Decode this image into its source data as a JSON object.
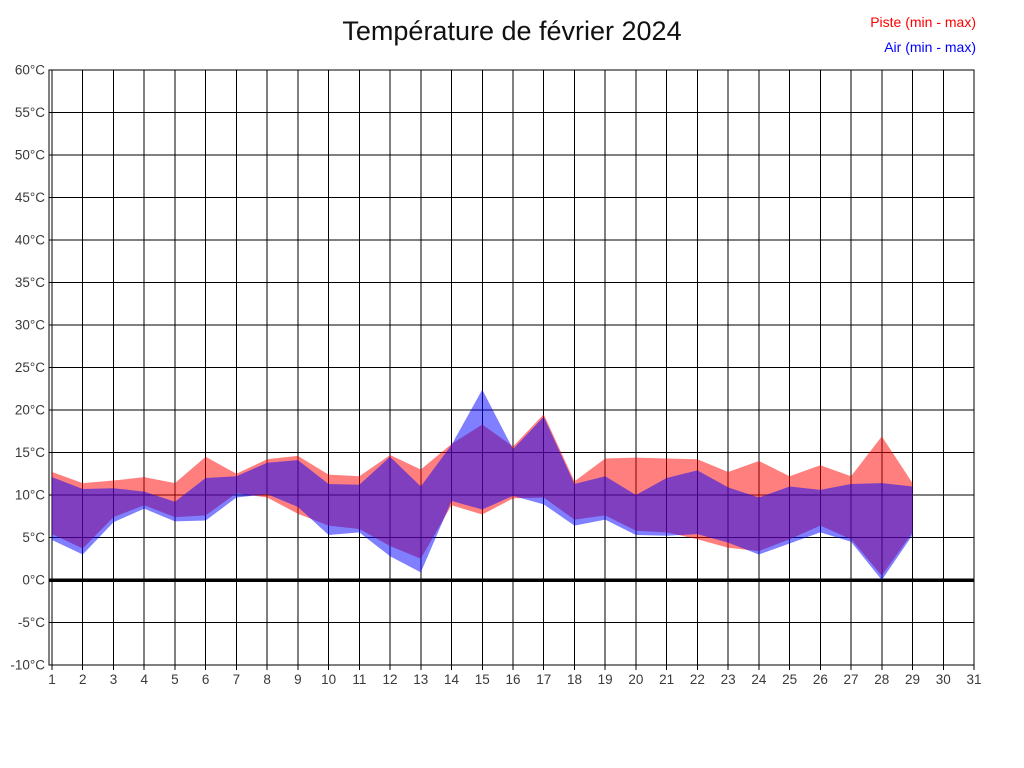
{
  "title": "Température de février 2024",
  "legend": {
    "piste": "Piste (min - max)",
    "air": "Air (min - max)"
  },
  "colors": {
    "piste_text": "#ff0000",
    "air_text": "#0000ff",
    "piste_fill": "rgba(255,0,0,0.5)",
    "air_fill": "rgba(0,0,255,0.5)",
    "grid": "#000000",
    "axis_border": "#000000",
    "zero_line": "#000000",
    "tick_text": "#3a3a3a",
    "background": "#ffffff"
  },
  "chart_data": {
    "type": "area",
    "title": "Température de février 2024",
    "x": [
      1,
      2,
      3,
      4,
      5,
      6,
      7,
      8,
      9,
      10,
      11,
      12,
      13,
      14,
      15,
      16,
      17,
      18,
      19,
      20,
      21,
      22,
      23,
      24,
      25,
      26,
      27,
      28,
      29
    ],
    "series": [
      {
        "name": "Piste (min - max)",
        "color": "#ff0000",
        "min": [
          5.4,
          3.7,
          7.4,
          8.8,
          7.4,
          7.6,
          10.2,
          9.7,
          7.8,
          6.4,
          6.0,
          4.0,
          2.5,
          8.8,
          7.7,
          9.6,
          9.7,
          7.1,
          7.6,
          5.8,
          5.6,
          4.8,
          3.8,
          3.4,
          4.8,
          6.4,
          4.8,
          0.5,
          5.6
        ],
        "max": [
          12.7,
          11.4,
          11.7,
          12.1,
          11.4,
          14.5,
          12.5,
          14.2,
          14.6,
          12.4,
          12.2,
          14.7,
          13.0,
          16.0,
          18.3,
          15.7,
          19.5,
          11.6,
          14.3,
          14.4,
          14.3,
          14.2,
          12.7,
          14.0,
          12.2,
          13.5,
          12.2,
          16.9,
          11.4
        ]
      },
      {
        "name": "Air (min - max)",
        "color": "#0000ff",
        "min": [
          4.7,
          3.0,
          6.8,
          8.4,
          6.9,
          7.0,
          9.7,
          10.1,
          8.6,
          5.3,
          5.6,
          2.8,
          0.9,
          9.3,
          8.3,
          9.9,
          8.9,
          6.4,
          7.1,
          5.3,
          5.2,
          5.4,
          4.4,
          3.0,
          4.3,
          5.6,
          4.5,
          0.0,
          5.3
        ],
        "max": [
          12.1,
          10.7,
          10.8,
          10.4,
          9.2,
          12.0,
          12.2,
          13.8,
          14.1,
          11.3,
          11.2,
          14.5,
          11.0,
          15.9,
          22.4,
          15.4,
          19.2,
          11.3,
          12.2,
          10.0,
          12.0,
          12.9,
          10.9,
          9.7,
          11.0,
          10.6,
          11.3,
          11.4,
          11.0
        ]
      }
    ],
    "xlabel": "",
    "ylabel": "",
    "ylim": [
      -10,
      60
    ],
    "ytick_step": 5,
    "y_tick_labels": [
      "-10°C",
      "-5°C",
      "0°C",
      "5°C",
      "10°C",
      "15°C",
      "20°C",
      "25°C",
      "30°C",
      "35°C",
      "40°C",
      "45°C",
      "50°C",
      "55°C",
      "60°C"
    ],
    "y_tick_values": [
      -10,
      -5,
      0,
      5,
      10,
      15,
      20,
      25,
      30,
      35,
      40,
      45,
      50,
      55,
      60
    ],
    "x_tick_labels": [
      "1",
      "2",
      "3",
      "4",
      "5",
      "6",
      "7",
      "8",
      "9",
      "10",
      "11",
      "12",
      "13",
      "14",
      "15",
      "16",
      "17",
      "18",
      "19",
      "20",
      "21",
      "22",
      "23",
      "24",
      "25",
      "26",
      "27",
      "28",
      "29",
      "30",
      "31"
    ],
    "x_tick_values": [
      1,
      2,
      3,
      4,
      5,
      6,
      7,
      8,
      9,
      10,
      11,
      12,
      13,
      14,
      15,
      16,
      17,
      18,
      19,
      20,
      21,
      22,
      23,
      24,
      25,
      26,
      27,
      28,
      29,
      30,
      31
    ],
    "grid": true,
    "zero_line_thick": true,
    "legend_position": "top-right"
  }
}
